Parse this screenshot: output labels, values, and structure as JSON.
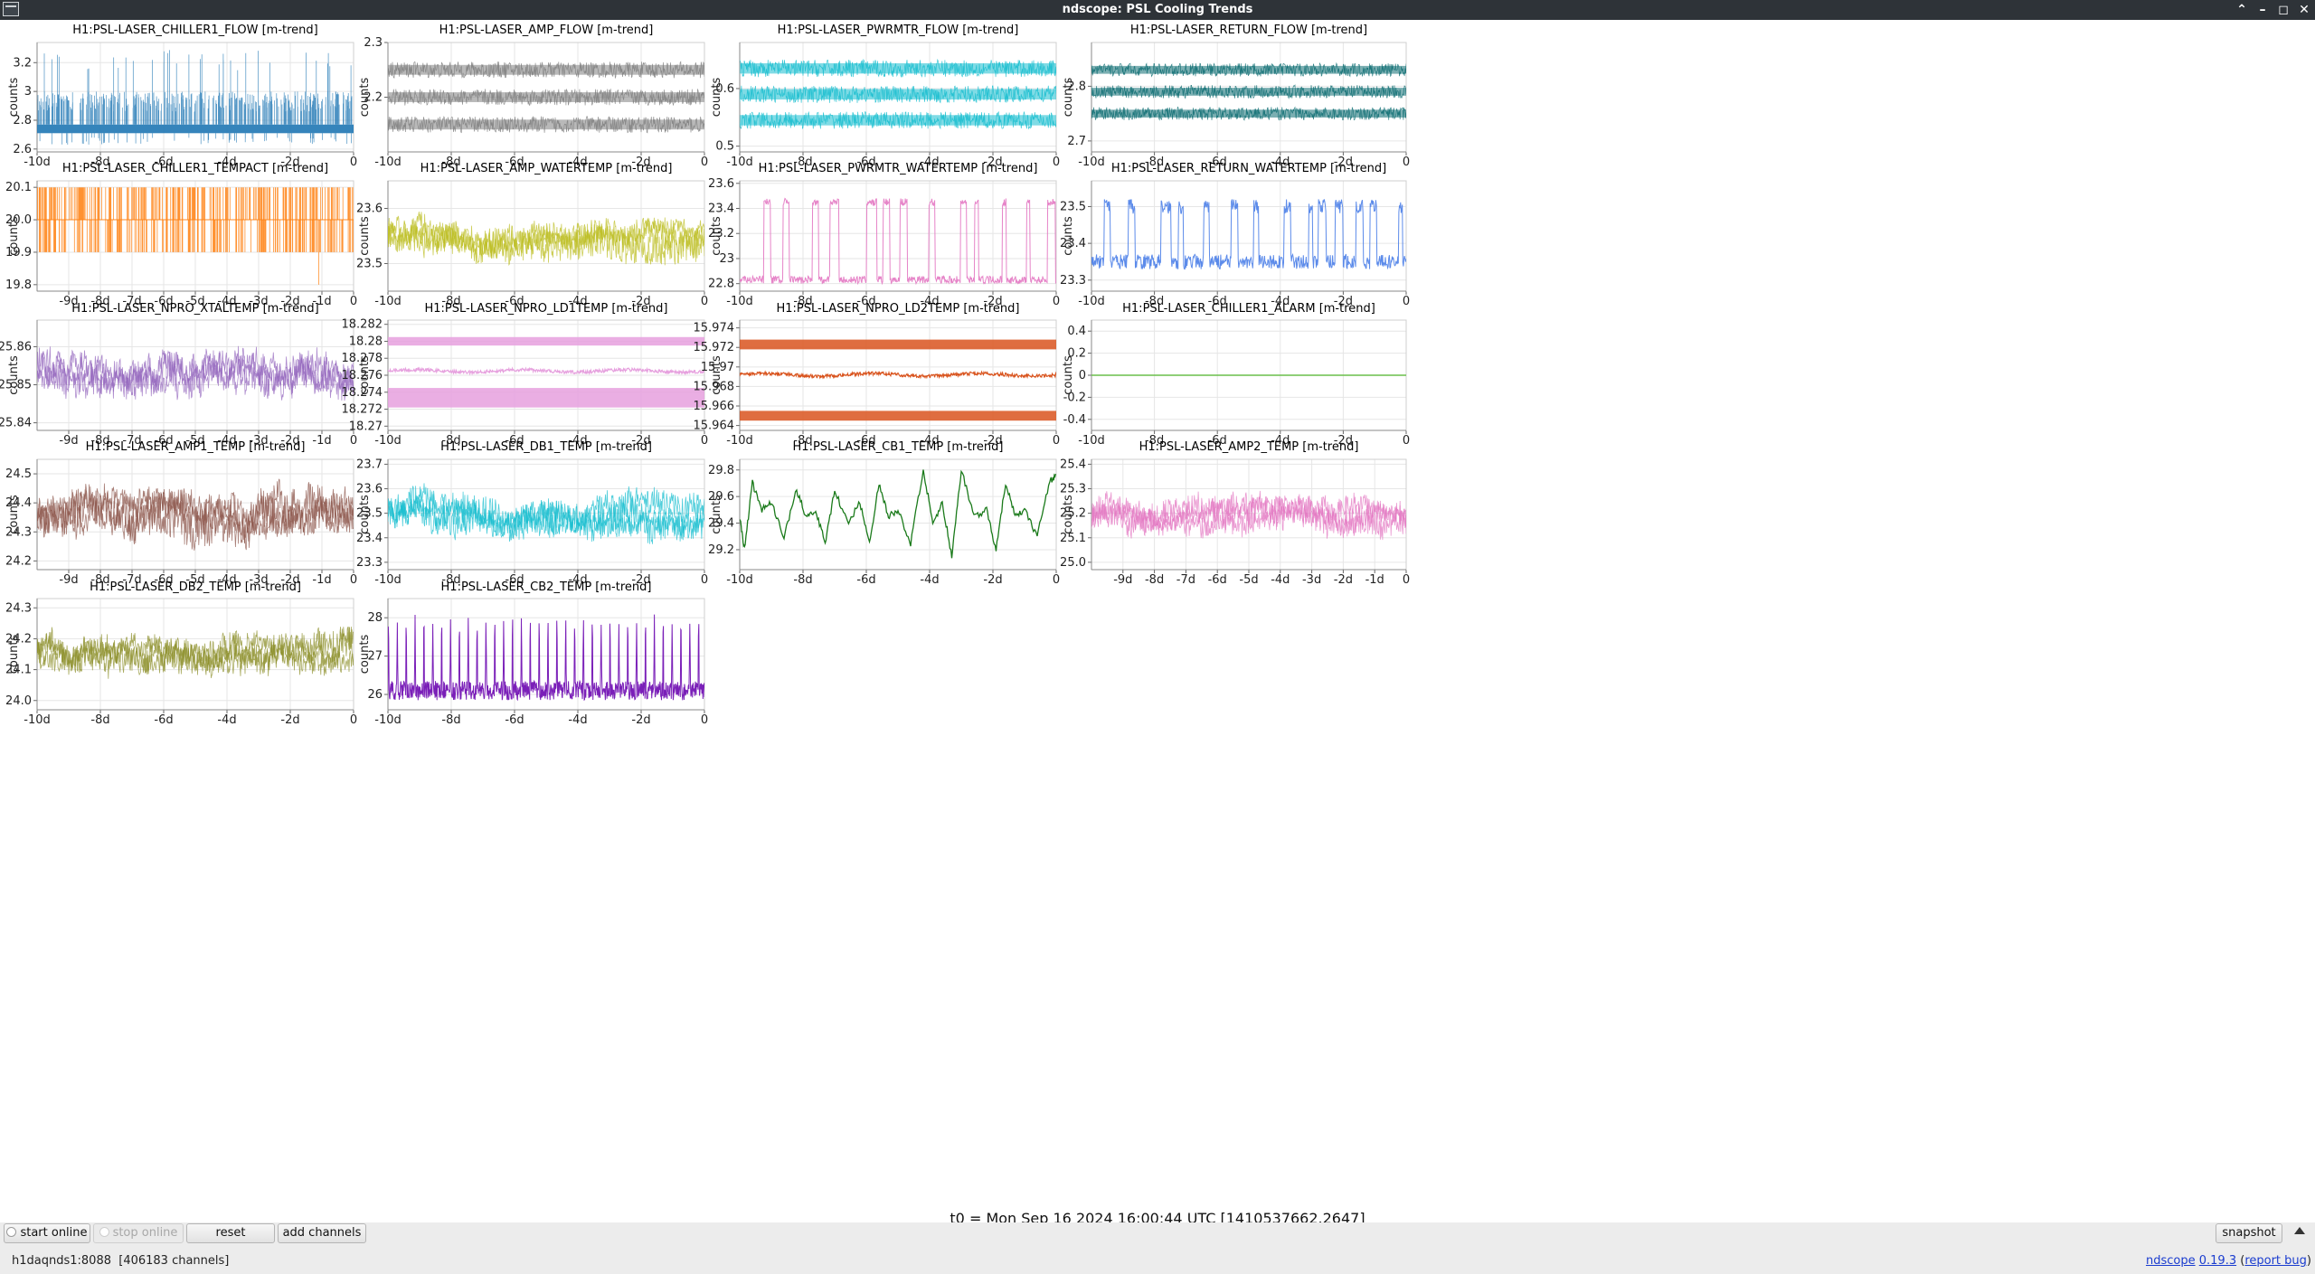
{
  "window": {
    "title": "ndscope: PSL Cooling Trends",
    "controls": [
      "minimize-up",
      "minimize",
      "maximize",
      "close"
    ]
  },
  "footer": {
    "t0_label": "t0 = Mon Sep 16 2024 16:00:44 UTC [1410537662.2647]",
    "buttons": {
      "start_online": "start online",
      "stop_online": "stop online",
      "reset": "reset",
      "add_channels": "add channels",
      "snapshot": "snapshot"
    },
    "status": {
      "server": "h1daqnds1:8088",
      "channels": "[406183 channels]",
      "app_name": "ndscope",
      "version": "0.19.3",
      "report_open": "(",
      "report_link": "report bug",
      "report_close": ")"
    }
  },
  "chart_data": [
    {
      "type": "line",
      "title": "H1:PSL-LASER_CHILLER1_FLOW [m-trend]",
      "ylabel": "counts",
      "color": "#1f77b4",
      "style": "spiky",
      "ylim": [
        2.58,
        3.34
      ],
      "yticks": [
        2.6,
        2.8,
        3,
        3.2
      ],
      "ytick_labels": [
        "2.6",
        "2.8",
        "3",
        "3.2"
      ],
      "xlim": [
        -10,
        0
      ],
      "xticks": [
        -10,
        -8,
        -6,
        -4,
        -2,
        0
      ],
      "xtick_labels": [
        "-10d",
        "-8d",
        "-6d",
        "-4d",
        "-2d",
        "0"
      ],
      "series": [
        {
          "band": [
            2.71,
            2.77
          ],
          "spikes_up": 3.0,
          "spikes_down": 2.63,
          "max": 3.29
        }
      ]
    },
    {
      "type": "line",
      "title": "H1:PSL-LASER_AMP_FLOW [m-trend]",
      "ylabel": "counts",
      "color": "#7f7f7f",
      "style": "bands",
      "ylim": [
        2.1,
        2.3
      ],
      "yticks": [
        2.2,
        2.3
      ],
      "ytick_labels": [
        "2.2",
        "2.3"
      ],
      "xlim": [
        -10,
        0
      ],
      "xticks": [
        -10,
        -8,
        -6,
        -4,
        -2,
        0
      ],
      "xtick_labels": [
        "-10d",
        "-8d",
        "-6d",
        "-4d",
        "-2d",
        "0"
      ],
      "series": [
        {
          "levels": [
            2.25,
            2.2,
            2.15
          ],
          "noise": 0.015
        }
      ]
    },
    {
      "type": "line",
      "title": "H1:PSL-LASER_PWRMTR_FLOW [m-trend]",
      "ylabel": "counts",
      "color": "#17becf",
      "style": "bands",
      "ylim": [
        0.49,
        0.68
      ],
      "yticks": [
        0.5,
        0.6
      ],
      "ytick_labels": [
        "0.5",
        "0.6"
      ],
      "xlim": [
        -10,
        0
      ],
      "xticks": [
        -10,
        -8,
        -6,
        -4,
        -2,
        0
      ],
      "xtick_labels": [
        "-10d",
        "-8d",
        "-6d",
        "-4d",
        "-2d",
        "0"
      ],
      "series": [
        {
          "levels": [
            0.635,
            0.59,
            0.545
          ],
          "noise": 0.015
        }
      ]
    },
    {
      "type": "line",
      "title": "H1:PSL-LASER_RETURN_FLOW [m-trend]",
      "ylabel": "counts",
      "color": "#0e6e73",
      "style": "bands",
      "ylim": [
        2.68,
        2.88
      ],
      "yticks": [
        2.7,
        2.8
      ],
      "ytick_labels": [
        "2.7",
        "2.8"
      ],
      "xlim": [
        -10,
        0
      ],
      "xticks": [
        -10,
        -8,
        -6,
        -4,
        -2,
        0
      ],
      "xtick_labels": [
        "-10d",
        "-8d",
        "-6d",
        "-4d",
        "-2d",
        "0"
      ],
      "series": [
        {
          "levels": [
            2.83,
            2.79,
            2.75
          ],
          "noise": 0.012
        }
      ]
    },
    {
      "type": "line",
      "title": "H1:PSL-LASER_CHILLER1_TEMPACT [m-trend]",
      "ylabel": "counts",
      "color": "#ff7f0e",
      "style": "steps",
      "ylim": [
        19.78,
        20.12
      ],
      "yticks": [
        19.8,
        19.9,
        20.0,
        20.1
      ],
      "ytick_labels": [
        "19.8",
        "19.9",
        "20.0",
        "20.1"
      ],
      "xlim": [
        -10,
        0
      ],
      "xticks": [
        -9,
        -8,
        -7,
        -6,
        -5,
        -4,
        -3,
        -2,
        -1,
        0
      ],
      "xtick_labels": [
        "-9d",
        "-8d",
        "-7d",
        "-6d",
        "-5d",
        "-4d",
        "-3d",
        "-2d",
        "-1d",
        "0"
      ],
      "series": [
        {
          "levels": [
            20.1,
            20.0,
            19.9
          ],
          "min": 19.8
        }
      ]
    },
    {
      "type": "line",
      "title": "H1:PSL-LASER_AMP_WATERTEMP [m-trend]",
      "ylabel": "counts",
      "color": "#bcbd22",
      "style": "noise",
      "ylim": [
        23.45,
        23.65
      ],
      "yticks": [
        23.5,
        23.6
      ],
      "ytick_labels": [
        "23.5",
        "23.6"
      ],
      "xlim": [
        -10,
        0
      ],
      "xticks": [
        -10,
        -8,
        -6,
        -4,
        -2,
        0
      ],
      "xtick_labels": [
        "-10d",
        "-8d",
        "-6d",
        "-4d",
        "-2d",
        "0"
      ],
      "series": [
        {
          "mean": 23.55,
          "amp": 0.03,
          "wander": 0.005
        }
      ]
    },
    {
      "type": "line",
      "title": "H1:PSL-LASER_PWRMTR_WATERTEMP [m-trend]",
      "ylabel": "counts",
      "color": "#e377c2",
      "style": "square",
      "ylim": [
        22.74,
        23.62
      ],
      "yticks": [
        22.8,
        23,
        23.2,
        23.4,
        23.6
      ],
      "ytick_labels": [
        "22.8",
        "23",
        "23.2",
        "23.4",
        "23.6"
      ],
      "xlim": [
        -10,
        0
      ],
      "xticks": [
        -10,
        -8,
        -6,
        -4,
        -2,
        0
      ],
      "xtick_labels": [
        "-10d",
        "-8d",
        "-6d",
        "-4d",
        "-2d",
        "0"
      ],
      "series": [
        {
          "low": 22.83,
          "high": 23.45,
          "noise": 0.03
        }
      ]
    },
    {
      "type": "line",
      "title": "H1:PSL-LASER_RETURN_WATERTEMP [m-trend]",
      "ylabel": "counts",
      "color": "#4a7ee8",
      "style": "square",
      "ylim": [
        23.27,
        23.57
      ],
      "yticks": [
        23.3,
        23.4,
        23.5
      ],
      "ytick_labels": [
        "23.3",
        "23.4",
        "23.5"
      ],
      "xlim": [
        -10,
        0
      ],
      "xticks": [
        -10,
        -8,
        -6,
        -4,
        -2,
        0
      ],
      "xtick_labels": [
        "-10d",
        "-8d",
        "-6d",
        "-4d",
        "-2d",
        "0"
      ],
      "series": [
        {
          "low": 23.35,
          "high": 23.5,
          "noise": 0.02
        }
      ]
    },
    {
      "type": "line",
      "title": "H1:PSL-LASER_NPRO_XTALTEMP [m-trend]",
      "ylabel": "counts",
      "color": "#9467bd",
      "style": "noise",
      "ylim": [
        25.838,
        25.867
      ],
      "yticks": [
        25.84,
        25.85,
        25.86
      ],
      "ytick_labels": [
        "25.84",
        "25.85",
        "25.86"
      ],
      "xlim": [
        -10,
        0
      ],
      "xticks": [
        -9,
        -8,
        -7,
        -6,
        -5,
        -4,
        -3,
        -2,
        -1,
        0
      ],
      "xtick_labels": [
        "-9d",
        "-8d",
        "-7d",
        "-6d",
        "-5d",
        "-4d",
        "-3d",
        "-2d",
        "-1d",
        "0"
      ],
      "series": [
        {
          "mean": 25.853,
          "amp": 0.004,
          "wander": 0.003
        }
      ]
    },
    {
      "type": "line",
      "title": "H1:PSL-LASER_NPRO_LD1TEMP [m-trend]",
      "ylabel": "counts",
      "color": "#e6a0de",
      "style": "triple",
      "ylim": [
        18.2695,
        18.2825
      ],
      "yticks": [
        18.27,
        18.272,
        18.274,
        18.276,
        18.278,
        18.28,
        18.282
      ],
      "ytick_labels": [
        "18.27",
        "18.272",
        "18.274",
        "18.276",
        "18.278",
        "18.28",
        "18.282"
      ],
      "xlim": [
        -10,
        0
      ],
      "xticks": [
        -10,
        -8,
        -6,
        -4,
        -2,
        0
      ],
      "xtick_labels": [
        "-10d",
        "-8d",
        "-6d",
        "-4d",
        "-2d",
        "0"
      ],
      "series": [
        {
          "top": [
            18.2795,
            18.2805
          ],
          "mid": 18.2765,
          "bottom": [
            18.2722,
            18.2745
          ]
        }
      ]
    },
    {
      "type": "line",
      "title": "H1:PSL-LASER_NPRO_LD2TEMP [m-trend]",
      "ylabel": "counts",
      "color": "#d9541e",
      "style": "triple",
      "ylim": [
        15.9635,
        15.9748
      ],
      "yticks": [
        15.964,
        15.966,
        15.968,
        15.97,
        15.972,
        15.974
      ],
      "ytick_labels": [
        "15.964",
        "15.966",
        "15.968",
        "15.97",
        "15.972",
        "15.974"
      ],
      "xlim": [
        -10,
        0
      ],
      "xticks": [
        -10,
        -8,
        -6,
        -4,
        -2,
        0
      ],
      "xtick_labels": [
        "-10d",
        "-8d",
        "-6d",
        "-4d",
        "-2d",
        "0"
      ],
      "series": [
        {
          "top": [
            15.9718,
            15.9728
          ],
          "mid": 15.9692,
          "bottom": [
            15.9645,
            15.9655
          ]
        }
      ]
    },
    {
      "type": "line",
      "title": "H1:PSL-LASER_CHILLER1_ALARM [m-trend]",
      "ylabel": "counts",
      "color": "#6abf4b",
      "style": "flat",
      "ylim": [
        -0.5,
        0.5
      ],
      "yticks": [
        -0.4,
        -0.2,
        0,
        0.2,
        0.4
      ],
      "ytick_labels": [
        "-0.4",
        "-0.2",
        "0",
        "0.2",
        "0.4"
      ],
      "xlim": [
        -10,
        0
      ],
      "xticks": [
        -10,
        -8,
        -6,
        -4,
        -2,
        0
      ],
      "xtick_labels": [
        "-10d",
        "-8d",
        "-6d",
        "-4d",
        "-2d",
        "0"
      ],
      "series": [
        {
          "value": 0
        }
      ]
    },
    {
      "type": "line",
      "title": "H1:PSL-LASER_AMP1_TEMP [m-trend]",
      "ylabel": "counts",
      "color": "#8c564b",
      "style": "noise",
      "ylim": [
        24.17,
        24.55
      ],
      "yticks": [
        24.2,
        24.3,
        24.4,
        24.5
      ],
      "ytick_labels": [
        "24.2",
        "24.3",
        "24.4",
        "24.5"
      ],
      "xlim": [
        -10,
        0
      ],
      "xticks": [
        -9,
        -8,
        -7,
        -6,
        -5,
        -4,
        -3,
        -2,
        -1,
        0
      ],
      "xtick_labels": [
        "-9d",
        "-8d",
        "-7d",
        "-6d",
        "-5d",
        "-4d",
        "-3d",
        "-2d",
        "-1d",
        "0"
      ],
      "series": [
        {
          "mean": 24.36,
          "amp": 0.07,
          "wander": 0.02
        }
      ]
    },
    {
      "type": "line",
      "title": "H1:PSL-LASER_DB1_TEMP [m-trend]",
      "ylabel": "counts",
      "color": "#17becf",
      "style": "noise",
      "ylim": [
        23.27,
        23.72
      ],
      "yticks": [
        23.3,
        23.4,
        23.5,
        23.6,
        23.7
      ],
      "ytick_labels": [
        "23.3",
        "23.4",
        "23.5",
        "23.6",
        "23.7"
      ],
      "xlim": [
        -10,
        0
      ],
      "xticks": [
        -10,
        -8,
        -6,
        -4,
        -2,
        0
      ],
      "xtick_labels": [
        "-10d",
        "-8d",
        "-6d",
        "-4d",
        "-2d",
        "0"
      ],
      "series": [
        {
          "mean": 23.5,
          "amp": 0.07,
          "wander": 0.02
        }
      ]
    },
    {
      "type": "line",
      "title": "H1:PSL-LASER_CB1_TEMP [m-trend]",
      "ylabel": "counts",
      "color": "#1a7a1a",
      "style": "wave",
      "ylim": [
        29.05,
        29.88
      ],
      "yticks": [
        29.2,
        29.4,
        29.6,
        29.8
      ],
      "ytick_labels": [
        "29.2",
        "29.4",
        "29.6",
        "29.8"
      ],
      "xlim": [
        -10,
        0
      ],
      "xticks": [
        -10,
        -8,
        -6,
        -4,
        -2,
        0
      ],
      "xtick_labels": [
        "-10d",
        "-8d",
        "-6d",
        "-4d",
        "-2d",
        "0"
      ],
      "series": [
        {
          "x": [
            -10,
            -9.85,
            -9.6,
            -9.3,
            -9.0,
            -8.6,
            -8.2,
            -7.9,
            -7.6,
            -7.3,
            -7.0,
            -6.6,
            -6.2,
            -5.9,
            -5.6,
            -5.3,
            -5.0,
            -4.6,
            -4.2,
            -3.9,
            -3.6,
            -3.3,
            -3.0,
            -2.6,
            -2.2,
            -1.9,
            -1.6,
            -1.3,
            -1.0,
            -0.6,
            -0.2,
            0
          ],
          "y": [
            29.45,
            29.2,
            29.7,
            29.5,
            29.55,
            29.3,
            29.65,
            29.45,
            29.5,
            29.25,
            29.65,
            29.4,
            29.55,
            29.25,
            29.7,
            29.45,
            29.5,
            29.25,
            29.8,
            29.4,
            29.55,
            29.15,
            29.8,
            29.45,
            29.5,
            29.2,
            29.7,
            29.45,
            29.5,
            29.3,
            29.72,
            29.75
          ]
        }
      ]
    },
    {
      "type": "line",
      "title": "H1:PSL-LASER_AMP2_TEMP [m-trend]",
      "ylabel": "counts",
      "color": "#e377c2",
      "style": "noise",
      "ylim": [
        24.97,
        25.42
      ],
      "yticks": [
        25.0,
        25.1,
        25.2,
        25.3,
        25.4
      ],
      "ytick_labels": [
        "25.0",
        "25.1",
        "25.2",
        "25.3",
        "25.4"
      ],
      "xlim": [
        -10,
        0
      ],
      "xticks": [
        -9,
        -8,
        -7,
        -6,
        -5,
        -4,
        -3,
        -2,
        -1,
        0
      ],
      "xtick_labels": [
        "-9d",
        "-8d",
        "-7d",
        "-6d",
        "-5d",
        "-4d",
        "-3d",
        "-2d",
        "-1d",
        "0"
      ],
      "series": [
        {
          "mean": 25.19,
          "amp": 0.06,
          "wander": 0.02
        }
      ]
    },
    {
      "type": "line",
      "title": "H1:PSL-LASER_DB2_TEMP [m-trend]",
      "ylabel": "counts",
      "color": "#8c8f2a",
      "style": "noise",
      "ylim": [
        23.97,
        24.33
      ],
      "yticks": [
        24.0,
        24.1,
        24.2,
        24.3
      ],
      "ytick_labels": [
        "24.0",
        "24.1",
        "24.2",
        "24.3"
      ],
      "xlim": [
        -10,
        0
      ],
      "xticks": [
        -10,
        -8,
        -6,
        -4,
        -2,
        0
      ],
      "xtick_labels": [
        "-10d",
        "-8d",
        "-6d",
        "-4d",
        "-2d",
        "0"
      ],
      "series": [
        {
          "mean": 24.16,
          "amp": 0.05,
          "wander": 0.02
        }
      ]
    },
    {
      "type": "line",
      "title": "H1:PSL-LASER_CB2_TEMP [m-trend]",
      "ylabel": "counts",
      "color": "#7a1fb8",
      "style": "spikes",
      "ylim": [
        25.6,
        28.5
      ],
      "yticks": [
        26,
        27,
        28
      ],
      "ytick_labels": [
        "26",
        "27",
        "28"
      ],
      "xlim": [
        -10,
        0
      ],
      "xticks": [
        -10,
        -8,
        -6,
        -4,
        -2,
        0
      ],
      "xtick_labels": [
        "-10d",
        "-8d",
        "-6d",
        "-4d",
        "-2d",
        "0"
      ],
      "series": [
        {
          "base": 26.1,
          "peak": 28.1,
          "period_days": 0.28
        }
      ]
    }
  ]
}
